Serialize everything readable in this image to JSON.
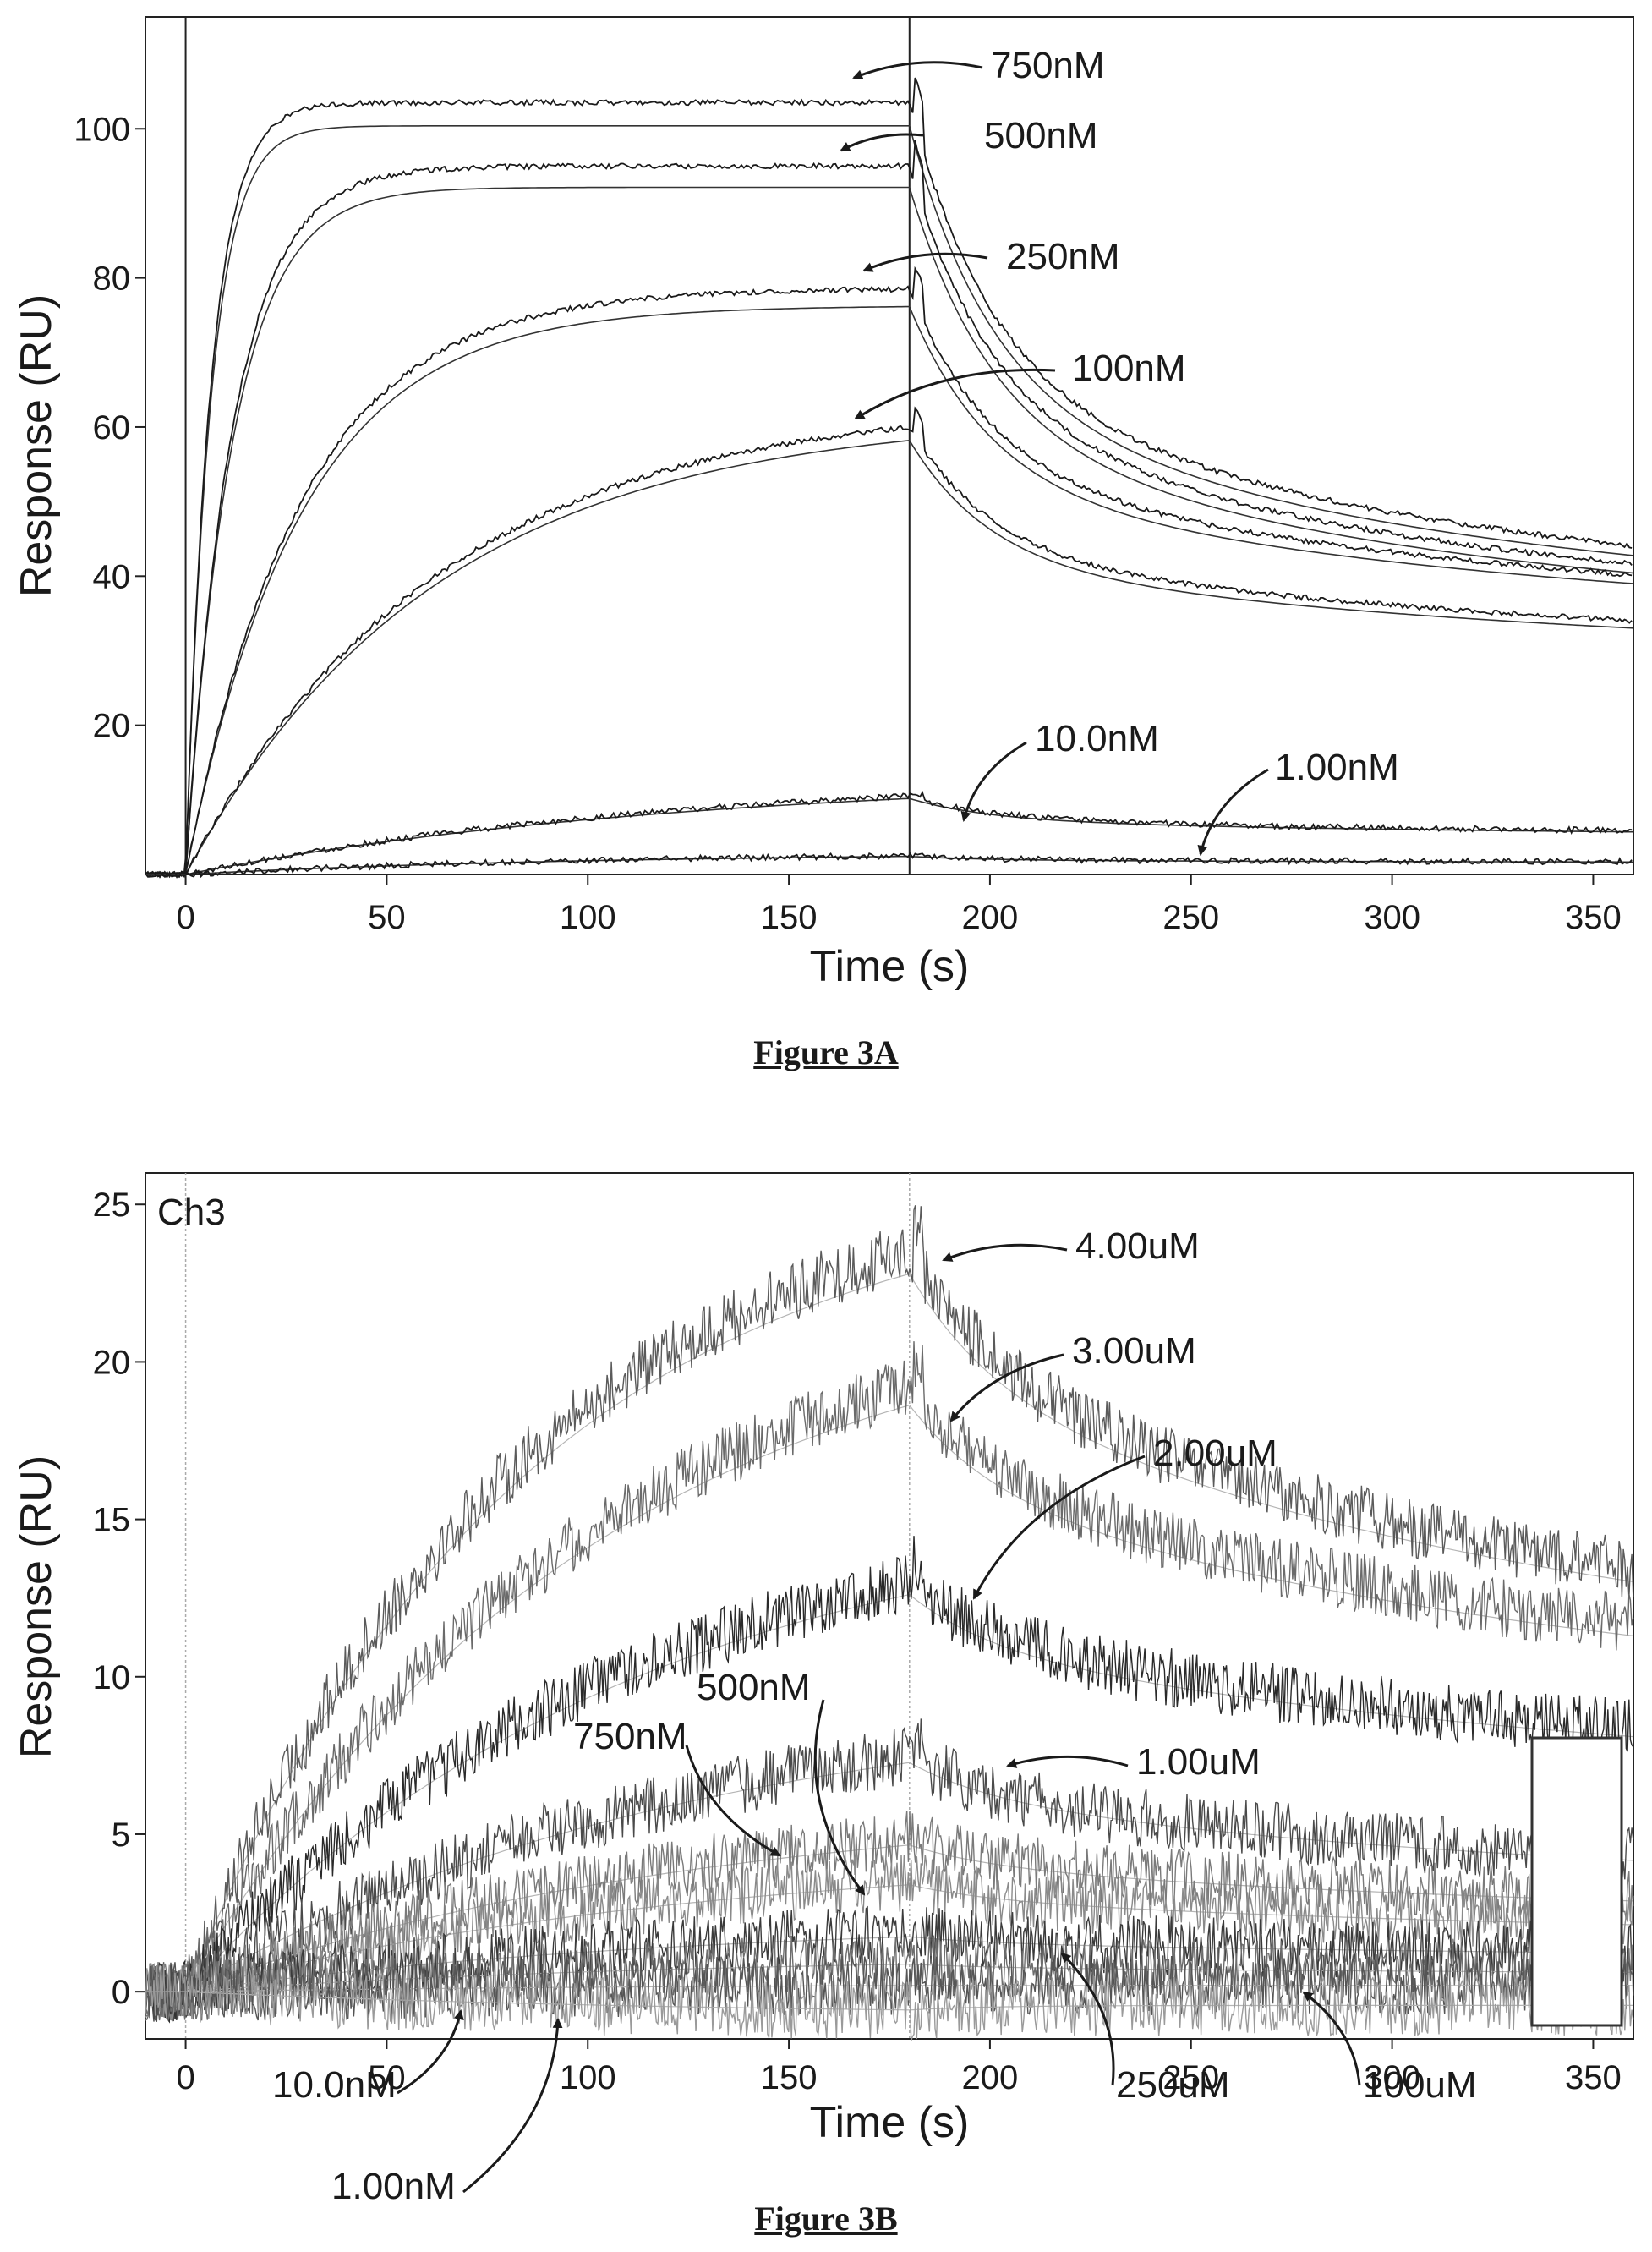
{
  "chart_data": [
    {
      "type": "line",
      "figure_label": "Figure 3A",
      "xlabel": "Time (s)",
      "ylabel": "Response (RU)",
      "panel_label": "",
      "xlim": [
        -10,
        360
      ],
      "ylim": [
        0,
        115
      ],
      "xticks": [
        0,
        50,
        100,
        150,
        200,
        250,
        300,
        350
      ],
      "yticks": [
        20,
        40,
        60,
        80,
        100
      ],
      "injection_end": 180,
      "series": [
        {
          "name": "750nM",
          "plateau": 103.5,
          "kon_rate": 0.16,
          "dissoc_end": 37,
          "noise": 0.35
        },
        {
          "name": "500nM",
          "plateau": 95,
          "kon_rate": 0.085,
          "dissoc_end": 35,
          "noise": 0.35
        },
        {
          "name": "250nM",
          "plateau": 78.5,
          "kon_rate": 0.035,
          "dissoc_end": 34,
          "noise": 0.35
        },
        {
          "name": "100nM",
          "plateau": 60,
          "kon_rate": 0.016,
          "dissoc_end": 29,
          "noise": 0.35
        },
        {
          "name": "10.0nM",
          "plateau": 10.5,
          "kon_rate": 0.008,
          "dissoc_end": 5,
          "noise": 0.4
        },
        {
          "name": "1.00nM",
          "plateau": 2.5,
          "kon_rate": 0.01,
          "dissoc_end": 1.5,
          "noise": 0.4
        }
      ],
      "annotations": [
        {
          "text": "750nM",
          "series": "750nM"
        },
        {
          "text": "500nM",
          "series": "500nM"
        },
        {
          "text": "250nM",
          "series": "250nM"
        },
        {
          "text": "100nM",
          "series": "100nM"
        },
        {
          "text": "10.0nM",
          "series": "10.0nM"
        },
        {
          "text": "1.00nM",
          "series": "1.00nM"
        }
      ]
    },
    {
      "type": "line",
      "figure_label": "Figure 3B",
      "xlabel": "Time (s)",
      "ylabel": "Response (RU)",
      "panel_label": "Ch3",
      "xlim": [
        -10,
        360
      ],
      "ylim": [
        -1.5,
        26
      ],
      "xticks": [
        0,
        50,
        100,
        150,
        200,
        250,
        300,
        350
      ],
      "yticks": [
        0,
        5,
        10,
        15,
        20,
        25
      ],
      "injection_end": 180,
      "series": [
        {
          "name": "4.00uM",
          "plateau": 23.5,
          "kon_rate": 0.012,
          "dissoc_end": 10.3,
          "noise": 0.6
        },
        {
          "name": "3.00uM",
          "plateau": 19.2,
          "kon_rate": 0.01,
          "dissoc_end": 9.0,
          "noise": 0.6
        },
        {
          "name": "2.00uM",
          "plateau": 13,
          "kon_rate": 0.009,
          "dissoc_end": 6.5,
          "noise": 0.6
        },
        {
          "name": "1.00uM",
          "plateau": 7.5,
          "kon_rate": 0.008,
          "dissoc_end": 3.3,
          "noise": 0.6
        },
        {
          "name": "750nM",
          "plateau": 4.8,
          "kon_rate": 0.008,
          "dissoc_end": 2.3,
          "noise": 0.6
        },
        {
          "name": "500nM",
          "plateau": 3.5,
          "kon_rate": 0.008,
          "dissoc_end": 1.7,
          "noise": 0.6
        },
        {
          "name": "250uM",
          "plateau": 1.8,
          "kon_rate": 0.008,
          "dissoc_end": 1.0,
          "noise": 0.6
        },
        {
          "name": "100uM",
          "plateau": 0.9,
          "kon_rate": 0.008,
          "dissoc_end": 0.5,
          "noise": 0.6
        },
        {
          "name": "10.0nM",
          "plateau": 0.2,
          "kon_rate": 0.008,
          "dissoc_end": 0.2,
          "noise": 0.6
        },
        {
          "name": "1.00nM",
          "plateau": -0.6,
          "kon_rate": 0.008,
          "dissoc_end": 0.0,
          "noise": 0.6
        }
      ],
      "annotations": [
        {
          "text": "4.00uM",
          "series": "4.00uM"
        },
        {
          "text": "3.00uM",
          "series": "3.00uM"
        },
        {
          "text": "2.00uM",
          "series": "2.00uM"
        },
        {
          "text": "1.00uM",
          "series": "1.00uM"
        },
        {
          "text": "500nM",
          "series": "500nM"
        },
        {
          "text": "750nM",
          "series": "750nM"
        },
        {
          "text": "10.0nM",
          "series": "10.0nM"
        },
        {
          "text": "1.00nM",
          "series": "1.00nM"
        },
        {
          "text": "250uM",
          "series": "250uM"
        },
        {
          "text": "100uM",
          "series": "100uM"
        }
      ]
    }
  ]
}
